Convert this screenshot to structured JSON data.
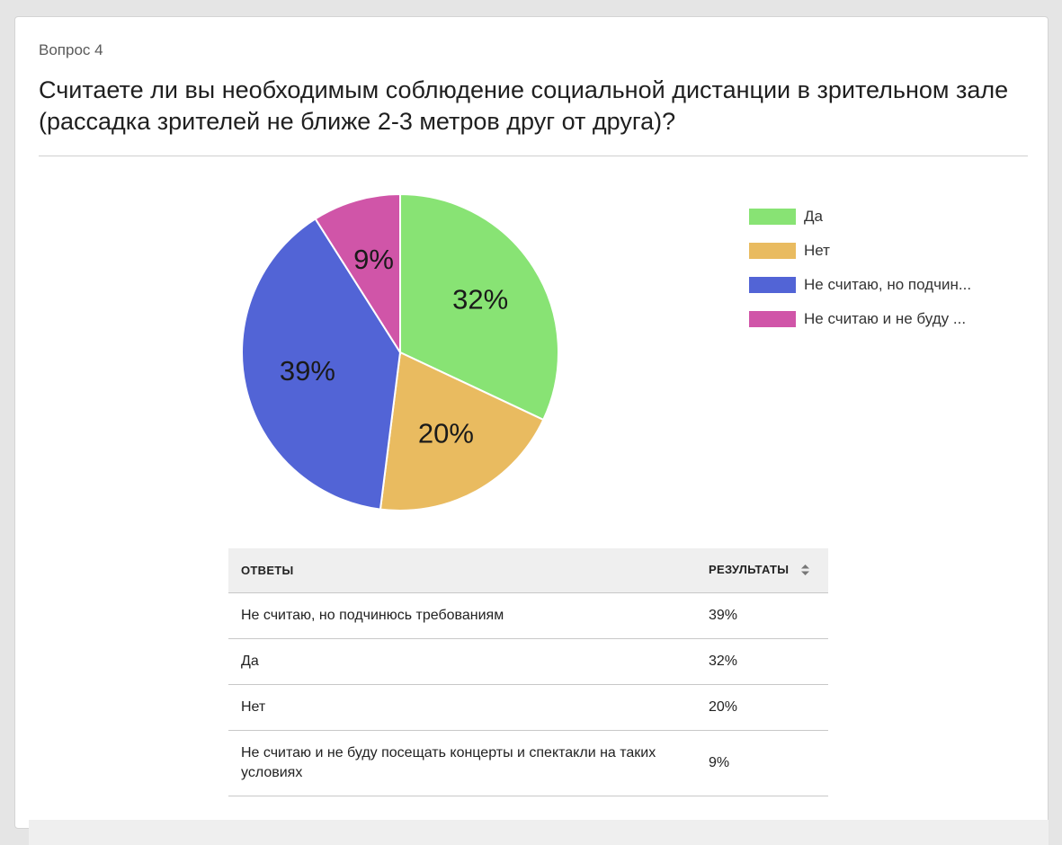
{
  "question": {
    "number": "Вопрос 4",
    "title": "Считаете ли вы необходимым соблюдение социальной дистанции в зрительном зале (рассадка зрителей не ближе 2-3 метров друг от друга)?"
  },
  "colors": {
    "yes": "#88e374",
    "no": "#e9bb60",
    "comply": "#5264d6",
    "refuse": "#d055a8"
  },
  "chart_data": {
    "type": "pie",
    "slices": [
      {
        "key": "yes",
        "label": "Да",
        "legend": "Да",
        "value": 32,
        "display": "32%",
        "color": "#88e374"
      },
      {
        "key": "no",
        "label": "Нет",
        "legend": "Нет",
        "value": 20,
        "display": "20%",
        "color": "#e9bb60"
      },
      {
        "key": "comply",
        "label": "Не считаю, но подчинюсь требованиям",
        "legend": "Не считаю, но подчин...",
        "value": 39,
        "display": "39%",
        "color": "#5264d6"
      },
      {
        "key": "refuse",
        "label": "Не считаю и не буду посещать концерты и спектакли на таких условиях",
        "legend": "Не считаю и не буду ...",
        "value": 9,
        "display": "9%",
        "color": "#d055a8"
      }
    ],
    "legend_position": "right"
  },
  "table": {
    "headers": {
      "answer": "ОТВЕТЫ",
      "result": "РЕЗУЛЬТАТЫ"
    },
    "sort_icon": "sort-icon",
    "rows": [
      {
        "answer": "Не считаю, но подчинюсь требованиям",
        "result": "39%"
      },
      {
        "answer": "Да",
        "result": "32%"
      },
      {
        "answer": "Нет",
        "result": "20%"
      },
      {
        "answer": "Не считаю и не буду посещать концерты и спектакли на таких условиях",
        "result": "9%"
      }
    ]
  }
}
